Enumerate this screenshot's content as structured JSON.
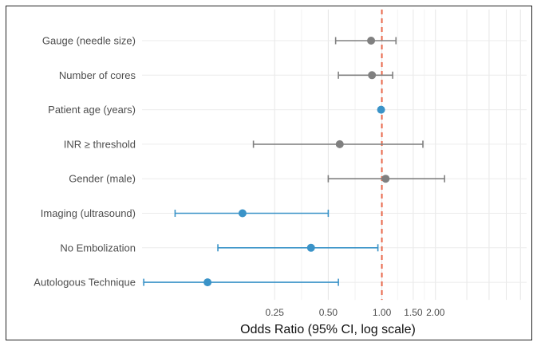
{
  "chart_data": {
    "type": "forest",
    "xlabel": "Odds Ratio (95% CI, log scale)",
    "x_scale": "log",
    "xlim": [
      0.045,
      6.5
    ],
    "x_ticks": [
      {
        "value": 0.25,
        "label": "0.25"
      },
      {
        "value": 0.5,
        "label": "0.50"
      },
      {
        "value": 1.0,
        "label": "1.00"
      },
      {
        "value": 1.5,
        "label": "1.50"
      },
      {
        "value": 2.0,
        "label": "2.00"
      }
    ],
    "reference_line": {
      "value": 1.0,
      "color": "#e8674a",
      "style": "dashed"
    },
    "grid": true,
    "colors": {
      "significant": "#3a93c8",
      "not_significant": "#808080"
    },
    "rows": [
      {
        "label": "Gauge (needle size)",
        "or": 0.87,
        "lower": 0.55,
        "upper": 1.2,
        "significant": false
      },
      {
        "label": "Number of cores",
        "or": 0.88,
        "lower": 0.57,
        "upper": 1.15,
        "significant": false
      },
      {
        "label": "Patient age (years)",
        "or": 0.99,
        "lower": 0.99,
        "upper": 0.99,
        "significant": true
      },
      {
        "label": "INR ≥ threshold",
        "or": 0.58,
        "lower": 0.19,
        "upper": 1.7,
        "significant": false
      },
      {
        "label": "Gender (male)",
        "or": 1.05,
        "lower": 0.5,
        "upper": 2.25,
        "significant": false
      },
      {
        "label": "Imaging (ultrasound)",
        "or": 0.165,
        "lower": 0.069,
        "upper": 0.5,
        "significant": true
      },
      {
        "label": "No Embolization",
        "or": 0.4,
        "lower": 0.12,
        "upper": 0.95,
        "significant": true
      },
      {
        "label": "Autologous Technique",
        "or": 0.105,
        "lower": 0.046,
        "upper": 0.57,
        "significant": true
      }
    ]
  }
}
